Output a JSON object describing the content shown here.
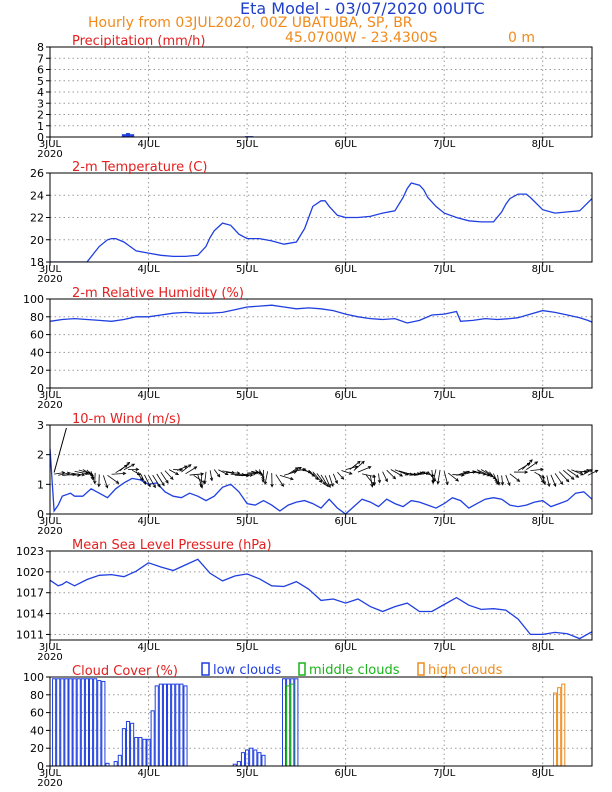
{
  "header": {
    "title": "Eta Model - 03/07/2020 00UTC",
    "subtitle": "Hourly from 03JUL2020, 00Z  UBATUBA, SP, BR",
    "coords": "45.0700W - 23.4300S",
    "elevation": "0  m"
  },
  "colors": {
    "title": "#1f3fc9",
    "subtitle": "#f08a1c",
    "panel_title": "#e32020",
    "series": "#1f3fe0",
    "wind_arrows": "#000000",
    "low_clouds": "#1f3fe0",
    "middle_clouds": "#19b419",
    "high_clouds": "#f08a1c",
    "grid": "#9a9a9a"
  },
  "x_axis": {
    "unit": "hours since 03JUL2020 00Z",
    "range": [
      0,
      132
    ],
    "ticks": [
      {
        "hour": 0,
        "label": "3JUL",
        "sublabel": "2020"
      },
      {
        "hour": 24,
        "label": "4JUL"
      },
      {
        "hour": 48,
        "label": "5JUL"
      },
      {
        "hour": 72,
        "label": "6JUL"
      },
      {
        "hour": 96,
        "label": "7JUL"
      },
      {
        "hour": 120,
        "label": "8JUL"
      }
    ]
  },
  "chart_data": [
    {
      "type": "bar",
      "title": "Precipitation (mm/h)",
      "ylim": [
        0,
        8
      ],
      "yticks": [
        0,
        1,
        2,
        3,
        4,
        5,
        6,
        7,
        8
      ],
      "series": [
        {
          "name": "Precipitation",
          "x": [
            18,
            19,
            20,
            48,
            49
          ],
          "values": [
            0.25,
            0.35,
            0.25,
            0.08,
            0.08
          ]
        }
      ]
    },
    {
      "type": "line",
      "title": "2-m Temperature (C)",
      "ylim": [
        18,
        26
      ],
      "yticks": [
        18,
        20,
        22,
        24,
        26
      ],
      "series": [
        {
          "name": "Temperature",
          "x": [
            0,
            6,
            9,
            12,
            14,
            15,
            16,
            18,
            21,
            24,
            27,
            30,
            33,
            36,
            38,
            39,
            40,
            42,
            44,
            46,
            48,
            51,
            54,
            57,
            60,
            62,
            63,
            64,
            66,
            67,
            68,
            70,
            72,
            75,
            78,
            81,
            84,
            86,
            87,
            88,
            90,
            91,
            92,
            94,
            96,
            99,
            102,
            105,
            108,
            110,
            111,
            112,
            114,
            116,
            117,
            120,
            123,
            126,
            129,
            132
          ],
          "values": [
            18,
            18,
            18,
            19.4,
            20,
            20.1,
            20.1,
            19.8,
            19,
            18.8,
            18.6,
            18.5,
            18.5,
            18.6,
            19.4,
            20.2,
            20.8,
            21.5,
            21.3,
            20.5,
            20.1,
            20.1,
            19.9,
            19.6,
            19.8,
            21,
            22,
            23,
            23.5,
            23.5,
            23,
            22.2,
            22,
            22,
            22.1,
            22.4,
            22.6,
            23.8,
            24.6,
            25.1,
            24.9,
            24.5,
            23.8,
            23,
            22.4,
            22,
            21.7,
            21.6,
            21.6,
            22.5,
            23.2,
            23.7,
            24.1,
            24.1,
            23.8,
            22.7,
            22.4,
            22.5,
            22.6,
            23.7
          ]
        }
      ]
    },
    {
      "type": "line",
      "title": "2-m Relative Humidity (%)",
      "ylim": [
        0,
        100
      ],
      "yticks": [
        0,
        20,
        40,
        60,
        80,
        100
      ],
      "series": [
        {
          "name": "Relative Humidity",
          "x": [
            0,
            3,
            6,
            9,
            12,
            15,
            18,
            21,
            24,
            27,
            30,
            33,
            36,
            39,
            42,
            45,
            48,
            51,
            54,
            57,
            60,
            63,
            66,
            69,
            72,
            75,
            78,
            81,
            84,
            87,
            90,
            93,
            96,
            99,
            100,
            103,
            106,
            109,
            112,
            114,
            117,
            120,
            123,
            126,
            129,
            131,
            132
          ],
          "values": [
            75,
            77,
            78,
            77,
            76,
            75,
            77,
            80,
            80,
            82,
            84,
            85,
            84,
            84,
            85,
            88,
            91,
            92,
            93,
            91,
            89,
            90,
            89,
            87,
            83,
            80,
            78,
            77,
            78,
            73,
            76,
            82,
            83,
            86,
            75,
            76,
            78,
            77,
            78,
            79,
            83,
            87,
            85,
            82,
            79,
            76,
            74
          ]
        }
      ]
    },
    {
      "type": "line",
      "title": "10-m Wind (m/s)",
      "ylim": [
        0,
        3
      ],
      "yticks": [
        0,
        1,
        2,
        3
      ],
      "series": [
        {
          "name": "Wind speed",
          "x": [
            0,
            1,
            2,
            3,
            5,
            6,
            8,
            10,
            12,
            14,
            16,
            18,
            20,
            22,
            24,
            26,
            28,
            30,
            32,
            34,
            36,
            38,
            40,
            42,
            44,
            46,
            48,
            50,
            52,
            54,
            56,
            58,
            60,
            62,
            64,
            66,
            68,
            70,
            72,
            74,
            76,
            78,
            80,
            82,
            84,
            86,
            88,
            90,
            92,
            94,
            96,
            98,
            100,
            102,
            104,
            106,
            108,
            110,
            112,
            114,
            116,
            118,
            120,
            122,
            124,
            126,
            128,
            130,
            132
          ],
          "values": [
            2.2,
            0.1,
            0.3,
            0.6,
            0.7,
            0.6,
            0.6,
            0.85,
            0.7,
            0.55,
            0.85,
            1.05,
            1.2,
            1.15,
            1.0,
            1.05,
            0.75,
            0.6,
            0.55,
            0.7,
            0.6,
            0.45,
            0.6,
            0.9,
            1.0,
            0.75,
            0.35,
            0.3,
            0.45,
            0.3,
            0.1,
            0.3,
            0.4,
            0.45,
            0.35,
            0.2,
            0.5,
            0.2,
            0.0,
            0.25,
            0.5,
            0.4,
            0.25,
            0.5,
            0.35,
            0.25,
            0.45,
            0.4,
            0.3,
            0.2,
            0.35,
            0.55,
            0.45,
            0.2,
            0.35,
            0.5,
            0.55,
            0.5,
            0.3,
            0.25,
            0.3,
            0.4,
            0.45,
            0.25,
            0.35,
            0.45,
            0.7,
            0.75,
            0.5
          ]
        }
      ]
    },
    {
      "type": "line",
      "title": "Mean Sea Level Pressure (hPa)",
      "ylim": [
        1010.2,
        1023
      ],
      "yticks": [
        1011,
        1014,
        1017,
        1020,
        1023
      ],
      "yticklabels": [
        "1011",
        "1014",
        "1017",
        "1020",
        "1023"
      ],
      "series": [
        {
          "name": "MSLP",
          "x": [
            0,
            2,
            3,
            4,
            6,
            9,
            12,
            15,
            18,
            21,
            24,
            27,
            30,
            33,
            36,
            39,
            42,
            45,
            48,
            51,
            54,
            57,
            60,
            63,
            66,
            69,
            72,
            75,
            78,
            81,
            84,
            87,
            90,
            93,
            96,
            99,
            102,
            105,
            108,
            111,
            114,
            117,
            120,
            123,
            126,
            129,
            132
          ],
          "values": [
            1018.8,
            1018,
            1018.2,
            1018.6,
            1018,
            1018.9,
            1019.5,
            1019.6,
            1019.3,
            1020.1,
            1021.3,
            1020.7,
            1020.2,
            1021,
            1021.8,
            1019.8,
            1018.7,
            1019.4,
            1019.7,
            1019,
            1018,
            1017.9,
            1018.6,
            1017.5,
            1015.9,
            1016.1,
            1015.5,
            1016.1,
            1015,
            1014.3,
            1015,
            1015.5,
            1014.3,
            1014.3,
            1015.3,
            1016.3,
            1015.2,
            1014.6,
            1014.7,
            1014.5,
            1013.2,
            1011,
            1011,
            1011.3,
            1011.1,
            1010.4,
            1011.4
          ]
        }
      ]
    },
    {
      "type": "bar",
      "title": "Cloud Cover (%)",
      "ylim": [
        0,
        100
      ],
      "yticks": [
        0,
        20,
        40,
        60,
        80,
        100
      ],
      "legend": {
        "low": "low clouds",
        "middle": "middle clouds",
        "high": "high clouds"
      },
      "series": [
        {
          "name": "low clouds",
          "x": [
            1,
            2,
            3,
            4,
            5,
            6,
            7,
            8,
            9,
            10,
            11,
            12,
            13,
            14,
            16,
            17,
            18,
            19,
            20,
            21,
            22,
            23,
            24,
            25,
            26,
            27,
            28,
            29,
            30,
            31,
            32,
            33,
            45,
            46,
            47,
            48,
            49,
            50,
            51,
            52,
            57,
            58,
            59,
            60
          ],
          "values": [
            98,
            98,
            98,
            98,
            98,
            98,
            98,
            98,
            98,
            98,
            98,
            96,
            95,
            3,
            5,
            12,
            42,
            50,
            48,
            32,
            32,
            30,
            30,
            62,
            90,
            92,
            92,
            92,
            92,
            92,
            92,
            90,
            2,
            5,
            15,
            18,
            20,
            18,
            15,
            12,
            98,
            98,
            98,
            98
          ]
        },
        {
          "name": "middle clouds",
          "x": [
            58,
            59
          ],
          "values": [
            90,
            92
          ]
        },
        {
          "name": "high clouds",
          "x": [
            123,
            124,
            125
          ],
          "values": [
            82,
            88,
            92
          ]
        }
      ]
    }
  ]
}
